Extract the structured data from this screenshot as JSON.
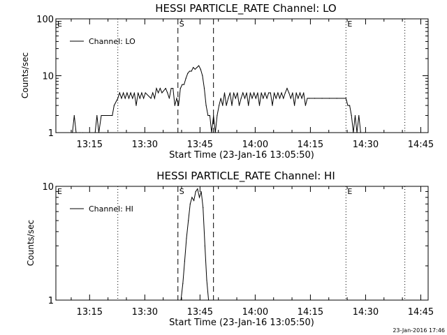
{
  "footer_date": "23-Jan-2016 17:46",
  "chart_data": [
    {
      "type": "line",
      "title": "HESSI PARTICLE_RATE Channel: LO",
      "xlabel": "Start Time (23-Jan-16 13:05:50)",
      "ylabel": "Counts/sec",
      "y_scale": "log",
      "ylim": [
        1,
        100
      ],
      "y_ticks": [
        "1",
        "10",
        "100"
      ],
      "xlim": [
        "13:05:50",
        "14:47:00"
      ],
      "x_ticks": [
        "13:15",
        "13:30",
        "13:45",
        "14:00",
        "14:15",
        "14:30",
        "14:45"
      ],
      "legend": {
        "label": "Channel: LO",
        "position": "top-left"
      },
      "markers": [
        {
          "label": "E",
          "time": "13:05:50",
          "style": "dotted"
        },
        {
          "label": "",
          "time": "13:22:40",
          "style": "dotted"
        },
        {
          "label": "S",
          "time": "13:39:00",
          "style": "dashed"
        },
        {
          "label": "",
          "time": "13:48:40",
          "style": "dashed"
        },
        {
          "label": "E",
          "time": "14:24:40",
          "style": "dotted"
        },
        {
          "label": "",
          "time": "14:40:40",
          "style": "dotted"
        }
      ],
      "series": [
        {
          "points": [
            [
              "13:05:50",
              1
            ],
            [
              "13:10:20",
              1
            ],
            [
              "13:10:50",
              2
            ],
            [
              "13:11:20",
              1
            ],
            [
              "13:12:20",
              1
            ],
            [
              "13:13:10",
              1
            ],
            [
              "13:16:30",
              1
            ],
            [
              "13:17:00",
              2
            ],
            [
              "13:17:30",
              1
            ],
            [
              "13:18:10",
              2
            ],
            [
              "13:21:10",
              2
            ],
            [
              "13:21:40",
              3
            ],
            [
              "13:22:40",
              4
            ],
            [
              "13:23:10",
              5
            ],
            [
              "13:23:40",
              4
            ],
            [
              "13:24:10",
              5
            ],
            [
              "13:24:40",
              4
            ],
            [
              "13:25:10",
              5
            ],
            [
              "13:25:40",
              4
            ],
            [
              "13:26:10",
              5
            ],
            [
              "13:26:40",
              4
            ],
            [
              "13:27:10",
              5
            ],
            [
              "13:27:40",
              3
            ],
            [
              "13:28:10",
              5
            ],
            [
              "13:28:40",
              4
            ],
            [
              "13:29:10",
              5
            ],
            [
              "13:29:40",
              4
            ],
            [
              "13:30:10",
              5
            ],
            [
              "13:31:40",
              4
            ],
            [
              "13:32:10",
              5
            ],
            [
              "13:32:40",
              4
            ],
            [
              "13:33:10",
              6
            ],
            [
              "13:33:40",
              5
            ],
            [
              "13:34:10",
              6
            ],
            [
              "13:34:40",
              5
            ],
            [
              "13:35:40",
              6
            ],
            [
              "13:36:10",
              5
            ],
            [
              "13:36:40",
              4
            ],
            [
              "13:37:10",
              6
            ],
            [
              "13:37:40",
              6
            ],
            [
              "13:38:10",
              3
            ],
            [
              "13:38:40",
              4
            ],
            [
              "13:39:10",
              3
            ],
            [
              "13:39:40",
              6
            ],
            [
              "13:40:10",
              7
            ],
            [
              "13:40:40",
              7
            ],
            [
              "13:41:10",
              9
            ],
            [
              "13:41:40",
              11
            ],
            [
              "13:42:10",
              12
            ],
            [
              "13:42:40",
              12
            ],
            [
              "13:43:10",
              14
            ],
            [
              "13:43:40",
              13
            ],
            [
              "13:44:10",
              14
            ],
            [
              "13:44:40",
              15
            ],
            [
              "13:45:10",
              13
            ],
            [
              "13:45:40",
              10
            ],
            [
              "13:46:10",
              6
            ],
            [
              "13:46:40",
              3
            ],
            [
              "13:47:10",
              2
            ],
            [
              "13:47:40",
              2
            ],
            [
              "13:48:10",
              1
            ],
            [
              "13:48:40",
              2
            ],
            [
              "13:49:10",
              1
            ],
            [
              "13:49:40",
              2
            ],
            [
              "13:50:10",
              3
            ],
            [
              "13:50:40",
              4
            ],
            [
              "13:51:10",
              3
            ],
            [
              "13:51:40",
              5
            ],
            [
              "13:52:10",
              3
            ],
            [
              "13:52:40",
              4
            ],
            [
              "13:53:10",
              5
            ],
            [
              "13:53:40",
              3
            ],
            [
              "13:54:10",
              5
            ],
            [
              "13:54:40",
              4
            ],
            [
              "13:55:10",
              5
            ],
            [
              "13:55:40",
              3
            ],
            [
              "13:56:10",
              4
            ],
            [
              "13:56:40",
              5
            ],
            [
              "13:57:10",
              4
            ],
            [
              "13:57:40",
              5
            ],
            [
              "13:58:10",
              3
            ],
            [
              "13:58:40",
              5
            ],
            [
              "13:59:10",
              4
            ],
            [
              "13:59:40",
              5
            ],
            [
              "14:00:10",
              4
            ],
            [
              "14:00:40",
              5
            ],
            [
              "14:01:10",
              3
            ],
            [
              "14:01:40",
              5
            ],
            [
              "14:02:10",
              4
            ],
            [
              "14:02:40",
              5
            ],
            [
              "14:03:10",
              4
            ],
            [
              "14:03:40",
              5
            ],
            [
              "14:04:10",
              5
            ],
            [
              "14:04:40",
              3
            ],
            [
              "14:05:10",
              5
            ],
            [
              "14:05:40",
              4
            ],
            [
              "14:06:10",
              5
            ],
            [
              "14:06:40",
              4
            ],
            [
              "14:07:10",
              5
            ],
            [
              "14:07:40",
              4
            ],
            [
              "14:08:10",
              5
            ],
            [
              "14:08:40",
              6
            ],
            [
              "14:09:10",
              5
            ],
            [
              "14:09:40",
              4
            ],
            [
              "14:10:10",
              5
            ],
            [
              "14:10:40",
              3
            ],
            [
              "14:11:10",
              5
            ],
            [
              "14:11:40",
              4
            ],
            [
              "14:12:10",
              5
            ],
            [
              "14:12:40",
              4
            ],
            [
              "14:13:10",
              5
            ],
            [
              "14:13:40",
              3
            ],
            [
              "14:14:10",
              4
            ],
            [
              "14:14:40",
              4
            ],
            [
              "14:16:10",
              4
            ],
            [
              "14:18:10",
              4
            ],
            [
              "14:20:10",
              4
            ],
            [
              "14:22:10",
              4
            ],
            [
              "14:24:40",
              4
            ],
            [
              "14:25:10",
              3
            ],
            [
              "14:25:40",
              3
            ],
            [
              "14:26:10",
              2
            ],
            [
              "14:26:40",
              1
            ],
            [
              "14:27:10",
              2
            ],
            [
              "14:27:40",
              1
            ],
            [
              "14:28:10",
              2
            ],
            [
              "14:28:40",
              1
            ],
            [
              "14:29:40",
              1
            ]
          ]
        }
      ]
    },
    {
      "type": "line",
      "title": "HESSI PARTICLE_RATE Channel: HI",
      "xlabel": "Start Time (23-Jan-16 13:05:50)",
      "ylabel": "Counts/sec",
      "y_scale": "log",
      "ylim": [
        1,
        10
      ],
      "y_ticks": [
        "1",
        "10"
      ],
      "xlim": [
        "13:05:50",
        "14:47:00"
      ],
      "x_ticks": [
        "13:15",
        "13:30",
        "13:45",
        "14:00",
        "14:15",
        "14:30",
        "14:45"
      ],
      "legend": {
        "label": "Channel: HI",
        "position": "top-left"
      },
      "markers": [
        {
          "label": "E",
          "time": "13:05:50",
          "style": "dotted"
        },
        {
          "label": "",
          "time": "13:22:40",
          "style": "dotted"
        },
        {
          "label": "S",
          "time": "13:39:00",
          "style": "dashed"
        },
        {
          "label": "",
          "time": "13:48:40",
          "style": "dashed"
        },
        {
          "label": "E",
          "time": "14:24:40",
          "style": "dotted"
        },
        {
          "label": "",
          "time": "14:40:40",
          "style": "dotted"
        }
      ],
      "series": [
        {
          "points": [
            [
              "13:39:50",
              1
            ],
            [
              "13:40:20",
              1.4
            ],
            [
              "13:40:50",
              2.2
            ],
            [
              "13:41:20",
              3.5
            ],
            [
              "13:41:50",
              5
            ],
            [
              "13:42:20",
              7
            ],
            [
              "13:42:50",
              8
            ],
            [
              "13:43:20",
              7.5
            ],
            [
              "13:43:50",
              9
            ],
            [
              "13:44:20",
              9.5
            ],
            [
              "13:44:50",
              8
            ],
            [
              "13:45:20",
              9
            ],
            [
              "13:45:50",
              6.5
            ],
            [
              "13:46:20",
              3
            ],
            [
              "13:46:50",
              1.5
            ],
            [
              "13:47:20",
              1
            ]
          ]
        }
      ]
    }
  ]
}
